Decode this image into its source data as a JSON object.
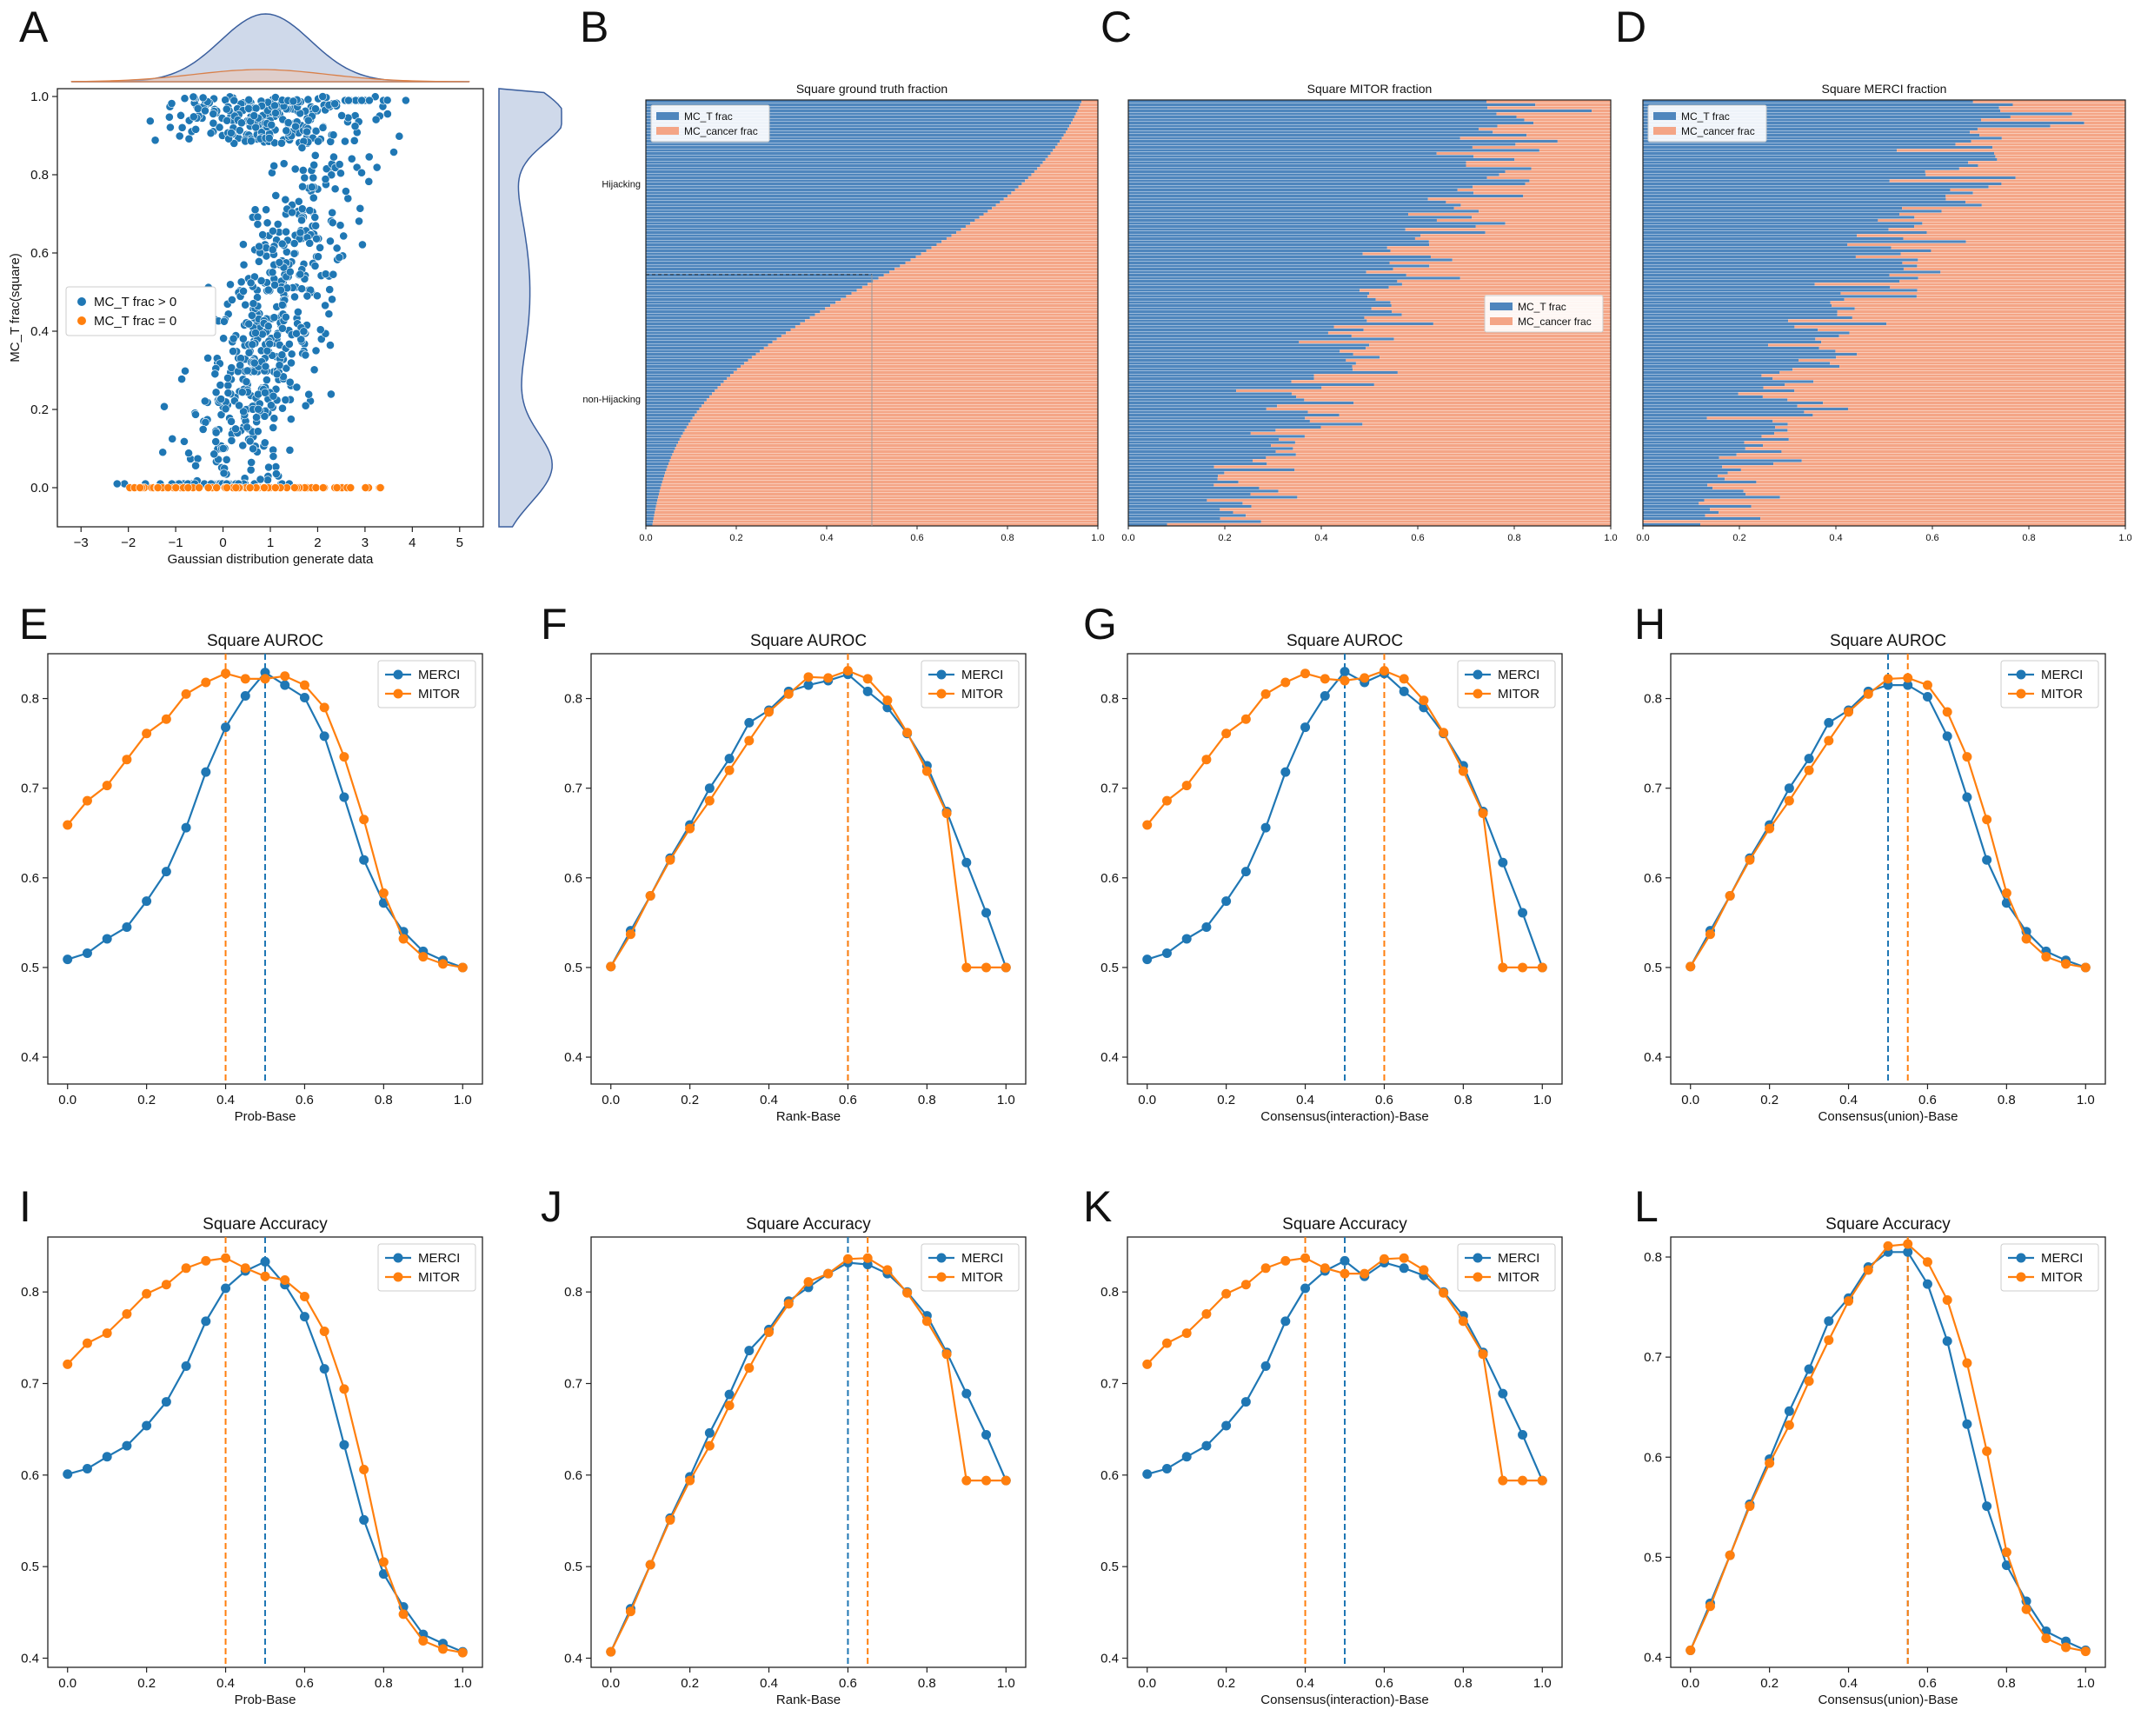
{
  "colors": {
    "merci": "#1f77b4",
    "mitor": "#ff7f0e",
    "bar_blue": "#4f86bd",
    "bar_salmon": "#f4a586",
    "kde_fill": "#cfd9ea",
    "kde_line": "#3b5f9e"
  },
  "chart_data": [
    {
      "id": "A",
      "letter": "A",
      "type": "scatter",
      "title": "",
      "xlabel": "Gaussian distribution generate data",
      "ylabel": "MC_T frac(square)",
      "xlim": [
        -3.5,
        5.5
      ],
      "ylim": [
        -0.1,
        1.02
      ],
      "xticks": [
        -3,
        -2,
        -1,
        0,
        1,
        2,
        3,
        4,
        5
      ],
      "yticks": [
        0.0,
        0.2,
        0.4,
        0.6,
        0.8,
        1.0
      ],
      "legend": [
        "MC_T frac > 0",
        "MC_T frac = 0"
      ],
      "series": [
        {
          "name": "MC_T frac > 0",
          "description": "about 800 points; x ~ N(1, 1); y rises with x, dense band near y=1 for x in [0.5, 3]"
        },
        {
          "name": "MC_T frac = 0",
          "description": "about 80 points at y = 0 spread over x from -2 to 3.5"
        }
      ],
      "marginal_top": {
        "type": "kde",
        "peak_x": 0.9
      },
      "marginal_right": {
        "type": "kde",
        "modes_y": [
          0.05,
          0.95
        ]
      }
    },
    {
      "id": "B",
      "letter": "B",
      "type": "bar",
      "orientation": "horizontal-stacked",
      "title": "Square ground truth fraction",
      "xlim": [
        0,
        1.0
      ],
      "xticks": [
        0.0,
        0.2,
        0.4,
        0.6,
        0.8,
        1.0
      ],
      "ytick_labels": [
        "Hijacking",
        "non-Hijacking"
      ],
      "legend": [
        "MC_T frac",
        "MC_cancer frac"
      ],
      "series": [
        {
          "name": "MC_T frac",
          "description": "sorted decreasing from 1.0 (top) to 0.0 (bottom); 0.5 at ~41% of rows"
        },
        {
          "name": "MC_cancer frac",
          "description": "1 - MC_T frac"
        }
      ]
    },
    {
      "id": "C",
      "letter": "C",
      "type": "bar",
      "orientation": "horizontal-stacked",
      "title": "Square MITOR fraction",
      "xlim": [
        0,
        1.0
      ],
      "xticks": [
        0.0,
        0.2,
        0.4,
        0.6,
        0.8,
        1.0
      ],
      "legend": [
        "MC_T frac",
        "MC_cancer frac"
      ],
      "series": [
        {
          "name": "MC_T frac",
          "description": "noisy, decreasing from ~0.85 at top to ~0.2 at bottom"
        },
        {
          "name": "MC_cancer frac",
          "description": "1 - MC_T frac"
        }
      ]
    },
    {
      "id": "D",
      "letter": "D",
      "type": "bar",
      "orientation": "horizontal-stacked",
      "title": "Square MERCI fraction",
      "xlim": [
        0,
        1.0
      ],
      "xticks": [
        0.0,
        0.2,
        0.4,
        0.6,
        0.8,
        1.0
      ],
      "legend": [
        "MC_T frac",
        "MC_cancer frac"
      ],
      "series": [
        {
          "name": "MC_T frac",
          "description": "noisy, decreasing from ~0.8 at top to ~0.15 at bottom"
        },
        {
          "name": "MC_cancer frac",
          "description": "1 - MC_T frac"
        }
      ]
    },
    {
      "id": "E",
      "letter": "E",
      "type": "line",
      "title": "Square  AUROC",
      "xlabel": "Prob-Base",
      "ylabel": "",
      "x": [
        0.0,
        0.05,
        0.1,
        0.15,
        0.2,
        0.25,
        0.3,
        0.35,
        0.4,
        0.45,
        0.5,
        0.55,
        0.6,
        0.65,
        0.7,
        0.75,
        0.8,
        0.85,
        0.9,
        0.95,
        1.0
      ],
      "xlim": [
        -0.05,
        1.05
      ],
      "ylim": [
        0.37,
        0.85
      ],
      "xticks": [
        0.0,
        0.2,
        0.4,
        0.6,
        0.8,
        1.0
      ],
      "yticks": [
        0.4,
        0.5,
        0.6,
        0.7,
        0.8
      ],
      "series": [
        {
          "name": "MERCI",
          "values": [
            0.509,
            0.516,
            0.532,
            0.545,
            0.574,
            0.607,
            0.656,
            0.718,
            0.768,
            0.803,
            0.829,
            0.815,
            0.801,
            0.758,
            0.69,
            0.62,
            0.572,
            0.54,
            0.518,
            0.508,
            0.5
          ],
          "best_x": 0.5
        },
        {
          "name": "MITOR",
          "values": [
            0.659,
            0.686,
            0.703,
            0.732,
            0.761,
            0.777,
            0.805,
            0.818,
            0.828,
            0.822,
            0.822,
            0.825,
            0.815,
            0.79,
            0.735,
            0.665,
            0.583,
            0.532,
            0.512,
            0.504,
            0.5
          ],
          "best_x": 0.4
        }
      ]
    },
    {
      "id": "F",
      "letter": "F",
      "type": "line",
      "title": "Square  AUROC",
      "xlabel": "Rank-Base",
      "ylabel": "",
      "x": [
        0.0,
        0.05,
        0.1,
        0.15,
        0.2,
        0.25,
        0.3,
        0.35,
        0.4,
        0.45,
        0.5,
        0.55,
        0.6,
        0.65,
        0.7,
        0.75,
        0.8,
        0.85,
        0.9,
        0.95,
        1.0
      ],
      "xlim": [
        -0.05,
        1.05
      ],
      "ylim": [
        0.37,
        0.85
      ],
      "xticks": [
        0.0,
        0.2,
        0.4,
        0.6,
        0.8,
        1.0
      ],
      "yticks": [
        0.4,
        0.5,
        0.6,
        0.7,
        0.8
      ],
      "series": [
        {
          "name": "MERCI",
          "values": [
            0.501,
            0.541,
            0.58,
            0.622,
            0.659,
            0.7,
            0.733,
            0.773,
            0.787,
            0.808,
            0.815,
            0.82,
            0.827,
            0.808,
            0.79,
            0.761,
            0.725,
            0.674,
            0.617,
            0.561,
            0.5
          ],
          "best_x": 0.6
        },
        {
          "name": "MITOR",
          "values": [
            0.501,
            0.537,
            0.58,
            0.62,
            0.655,
            0.686,
            0.72,
            0.753,
            0.785,
            0.805,
            0.824,
            0.823,
            0.831,
            0.822,
            0.798,
            0.762,
            0.719,
            0.672,
            0.5,
            0.5,
            0.5
          ],
          "best_x": 0.6
        }
      ]
    },
    {
      "id": "G",
      "letter": "G",
      "type": "line",
      "title": "Square  AUROC",
      "xlabel": "Consensus(interaction)-Base",
      "ylabel": "",
      "x": [
        0.0,
        0.05,
        0.1,
        0.15,
        0.2,
        0.25,
        0.3,
        0.35,
        0.4,
        0.45,
        0.5,
        0.55,
        0.6,
        0.65,
        0.7,
        0.75,
        0.8,
        0.85,
        0.9,
        0.95,
        1.0
      ],
      "xlim": [
        -0.05,
        1.05
      ],
      "ylim": [
        0.37,
        0.85
      ],
      "xticks": [
        0.0,
        0.2,
        0.4,
        0.6,
        0.8,
        1.0
      ],
      "yticks": [
        0.4,
        0.5,
        0.6,
        0.7,
        0.8
      ],
      "series": [
        {
          "name": "MERCI",
          "values": [
            0.509,
            0.516,
            0.532,
            0.545,
            0.574,
            0.607,
            0.656,
            0.718,
            0.768,
            0.803,
            0.83,
            0.818,
            0.828,
            0.808,
            0.79,
            0.761,
            0.725,
            0.674,
            0.617,
            0.561,
            0.5
          ],
          "best_x": 0.5
        },
        {
          "name": "MITOR",
          "values": [
            0.659,
            0.686,
            0.703,
            0.732,
            0.761,
            0.777,
            0.805,
            0.818,
            0.828,
            0.822,
            0.82,
            0.823,
            0.831,
            0.822,
            0.798,
            0.762,
            0.719,
            0.672,
            0.5,
            0.5,
            0.5
          ],
          "best_x": 0.6
        }
      ]
    },
    {
      "id": "H",
      "letter": "H",
      "type": "line",
      "title": "Square  AUROC",
      "xlabel": "Consensus(union)-Base",
      "ylabel": "",
      "x": [
        0.0,
        0.05,
        0.1,
        0.15,
        0.2,
        0.25,
        0.3,
        0.35,
        0.4,
        0.45,
        0.5,
        0.55,
        0.6,
        0.65,
        0.7,
        0.75,
        0.8,
        0.85,
        0.9,
        0.95,
        1.0
      ],
      "xlim": [
        -0.05,
        1.05
      ],
      "ylim": [
        0.37,
        0.85
      ],
      "xticks": [
        0.0,
        0.2,
        0.4,
        0.6,
        0.8,
        1.0
      ],
      "yticks": [
        0.4,
        0.5,
        0.6,
        0.7,
        0.8
      ],
      "series": [
        {
          "name": "MERCI",
          "values": [
            0.501,
            0.541,
            0.58,
            0.622,
            0.659,
            0.7,
            0.733,
            0.773,
            0.787,
            0.808,
            0.815,
            0.815,
            0.802,
            0.758,
            0.69,
            0.62,
            0.572,
            0.54,
            0.518,
            0.508,
            0.5
          ],
          "best_x": 0.5
        },
        {
          "name": "MITOR",
          "values": [
            0.501,
            0.537,
            0.58,
            0.62,
            0.655,
            0.686,
            0.72,
            0.753,
            0.785,
            0.805,
            0.822,
            0.823,
            0.815,
            0.785,
            0.735,
            0.665,
            0.583,
            0.532,
            0.512,
            0.504,
            0.5
          ],
          "best_x": 0.55
        }
      ]
    },
    {
      "id": "I",
      "letter": "I",
      "type": "line",
      "title": "Square  Accuracy",
      "xlabel": "Prob-Base",
      "ylabel": "",
      "x": [
        0.0,
        0.05,
        0.1,
        0.15,
        0.2,
        0.25,
        0.3,
        0.35,
        0.4,
        0.45,
        0.5,
        0.55,
        0.6,
        0.65,
        0.7,
        0.75,
        0.8,
        0.85,
        0.9,
        0.95,
        1.0
      ],
      "xlim": [
        -0.05,
        1.05
      ],
      "ylim": [
        0.39,
        0.86
      ],
      "xticks": [
        0.0,
        0.2,
        0.4,
        0.6,
        0.8,
        1.0
      ],
      "yticks": [
        0.4,
        0.5,
        0.6,
        0.7,
        0.8
      ],
      "series": [
        {
          "name": "MERCI",
          "values": [
            0.601,
            0.607,
            0.62,
            0.632,
            0.654,
            0.68,
            0.719,
            0.768,
            0.804,
            0.823,
            0.833,
            0.808,
            0.773,
            0.716,
            0.633,
            0.551,
            0.492,
            0.456,
            0.426,
            0.416,
            0.407
          ],
          "best_x": 0.5
        },
        {
          "name": "MITOR",
          "values": [
            0.721,
            0.744,
            0.755,
            0.776,
            0.798,
            0.808,
            0.826,
            0.834,
            0.837,
            0.826,
            0.817,
            0.813,
            0.795,
            0.757,
            0.694,
            0.606,
            0.505,
            0.448,
            0.419,
            0.41,
            0.406
          ],
          "best_x": 0.4
        }
      ]
    },
    {
      "id": "J",
      "letter": "J",
      "type": "line",
      "title": "Square  Accuracy",
      "xlabel": "Rank-Base",
      "ylabel": "",
      "x": [
        0.0,
        0.05,
        0.1,
        0.15,
        0.2,
        0.25,
        0.3,
        0.35,
        0.4,
        0.45,
        0.5,
        0.55,
        0.6,
        0.65,
        0.7,
        0.75,
        0.8,
        0.85,
        0.9,
        0.95,
        1.0
      ],
      "xlim": [
        -0.05,
        1.05
      ],
      "ylim": [
        0.39,
        0.86
      ],
      "xticks": [
        0.0,
        0.2,
        0.4,
        0.6,
        0.8,
        1.0
      ],
      "yticks": [
        0.4,
        0.5,
        0.6,
        0.7,
        0.8
      ],
      "series": [
        {
          "name": "MERCI",
          "values": [
            0.407,
            0.454,
            0.502,
            0.553,
            0.598,
            0.646,
            0.688,
            0.736,
            0.759,
            0.79,
            0.805,
            0.82,
            0.832,
            0.83,
            0.82,
            0.8,
            0.774,
            0.734,
            0.689,
            0.644,
            0.594
          ],
          "best_x": 0.6
        },
        {
          "name": "MITOR",
          "values": [
            0.407,
            0.451,
            0.502,
            0.551,
            0.594,
            0.632,
            0.676,
            0.717,
            0.756,
            0.787,
            0.811,
            0.82,
            0.836,
            0.837,
            0.824,
            0.799,
            0.768,
            0.732,
            0.594,
            0.594,
            0.594
          ],
          "best_x": 0.65
        }
      ]
    },
    {
      "id": "K",
      "letter": "K",
      "type": "line",
      "title": "Square  Accuracy",
      "xlabel": "Consensus(interaction)-Base",
      "ylabel": "",
      "x": [
        0.0,
        0.05,
        0.1,
        0.15,
        0.2,
        0.25,
        0.3,
        0.35,
        0.4,
        0.45,
        0.5,
        0.55,
        0.6,
        0.65,
        0.7,
        0.75,
        0.8,
        0.85,
        0.9,
        0.95,
        1.0
      ],
      "xlim": [
        -0.05,
        1.05
      ],
      "ylim": [
        0.39,
        0.86
      ],
      "xticks": [
        0.0,
        0.2,
        0.4,
        0.6,
        0.8,
        1.0
      ],
      "yticks": [
        0.4,
        0.5,
        0.6,
        0.7,
        0.8
      ],
      "series": [
        {
          "name": "MERCI",
          "values": [
            0.601,
            0.607,
            0.62,
            0.632,
            0.654,
            0.68,
            0.719,
            0.768,
            0.804,
            0.823,
            0.834,
            0.817,
            0.832,
            0.826,
            0.818,
            0.8,
            0.774,
            0.734,
            0.689,
            0.644,
            0.594
          ],
          "best_x": 0.5
        },
        {
          "name": "MITOR",
          "values": [
            0.721,
            0.744,
            0.755,
            0.776,
            0.798,
            0.808,
            0.826,
            0.834,
            0.837,
            0.826,
            0.82,
            0.82,
            0.836,
            0.837,
            0.824,
            0.799,
            0.768,
            0.732,
            0.594,
            0.594,
            0.594
          ],
          "best_x": 0.4
        }
      ]
    },
    {
      "id": "L",
      "letter": "L",
      "type": "line",
      "title": "Square  Accuracy",
      "xlabel": "Consensus(union)-Base",
      "ylabel": "",
      "x": [
        0.0,
        0.05,
        0.1,
        0.15,
        0.2,
        0.25,
        0.3,
        0.35,
        0.4,
        0.45,
        0.5,
        0.55,
        0.6,
        0.65,
        0.7,
        0.75,
        0.8,
        0.85,
        0.9,
        0.95,
        1.0
      ],
      "xlim": [
        -0.05,
        1.05
      ],
      "ylim": [
        0.39,
        0.82
      ],
      "xticks": [
        0.0,
        0.2,
        0.4,
        0.6,
        0.8,
        1.0
      ],
      "yticks": [
        0.4,
        0.5,
        0.6,
        0.7,
        0.8
      ],
      "series": [
        {
          "name": "MERCI",
          "values": [
            0.407,
            0.454,
            0.502,
            0.553,
            0.598,
            0.646,
            0.688,
            0.736,
            0.759,
            0.79,
            0.805,
            0.805,
            0.773,
            0.716,
            0.633,
            0.551,
            0.492,
            0.456,
            0.426,
            0.416,
            0.407
          ],
          "best_x": 0.55
        },
        {
          "name": "MITOR",
          "values": [
            0.407,
            0.451,
            0.502,
            0.551,
            0.594,
            0.632,
            0.676,
            0.717,
            0.756,
            0.787,
            0.811,
            0.813,
            0.795,
            0.757,
            0.694,
            0.606,
            0.505,
            0.448,
            0.419,
            0.41,
            0.406
          ],
          "best_x": 0.55
        }
      ]
    }
  ]
}
